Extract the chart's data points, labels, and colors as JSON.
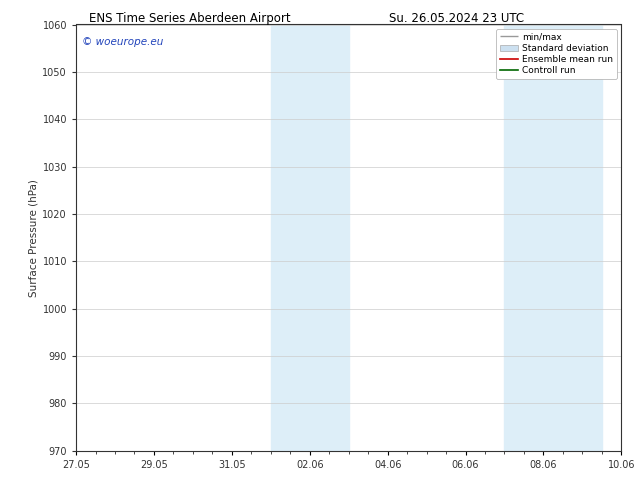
{
  "title_left": "ENS Time Series Aberdeen Airport",
  "title_right": "Su. 26.05.2024 23 UTC",
  "ylabel": "Surface Pressure (hPa)",
  "ylim": [
    970,
    1060
  ],
  "yticks": [
    970,
    980,
    990,
    1000,
    1010,
    1020,
    1030,
    1040,
    1050,
    1060
  ],
  "xlim_start": 0,
  "xlim_end": 14,
  "xtick_labels": [
    "27.05",
    "29.05",
    "31.05",
    "02.06",
    "04.06",
    "06.06",
    "08.06",
    "10.06"
  ],
  "xtick_positions": [
    0,
    2,
    4,
    6,
    8,
    10,
    12,
    14
  ],
  "shaded_bands": [
    {
      "x_start": 5.0,
      "x_end": 7.0
    },
    {
      "x_start": 11.0,
      "x_end": 13.5
    }
  ],
  "shaded_color": "#ddeef8",
  "watermark_text": "© woeurope.eu",
  "watermark_color": "#2244bb",
  "legend_entries": [
    {
      "label": "min/max",
      "color": "#999999",
      "lw": 1.0
    },
    {
      "label": "Standard deviation",
      "color": "#cce0f0",
      "lw": 5
    },
    {
      "label": "Ensemble mean run",
      "color": "#cc0000",
      "lw": 1.2
    },
    {
      "label": "Controll run",
      "color": "#006600",
      "lw": 1.2
    }
  ],
  "bg_color": "#ffffff",
  "plot_bg_color": "#ffffff",
  "grid_color": "#cccccc",
  "spine_color": "#333333",
  "tick_color": "#333333",
  "font_size_title": 8.5,
  "font_size_axis": 7.5,
  "font_size_tick": 7.0,
  "font_size_legend": 6.5,
  "font_size_watermark": 7.5
}
